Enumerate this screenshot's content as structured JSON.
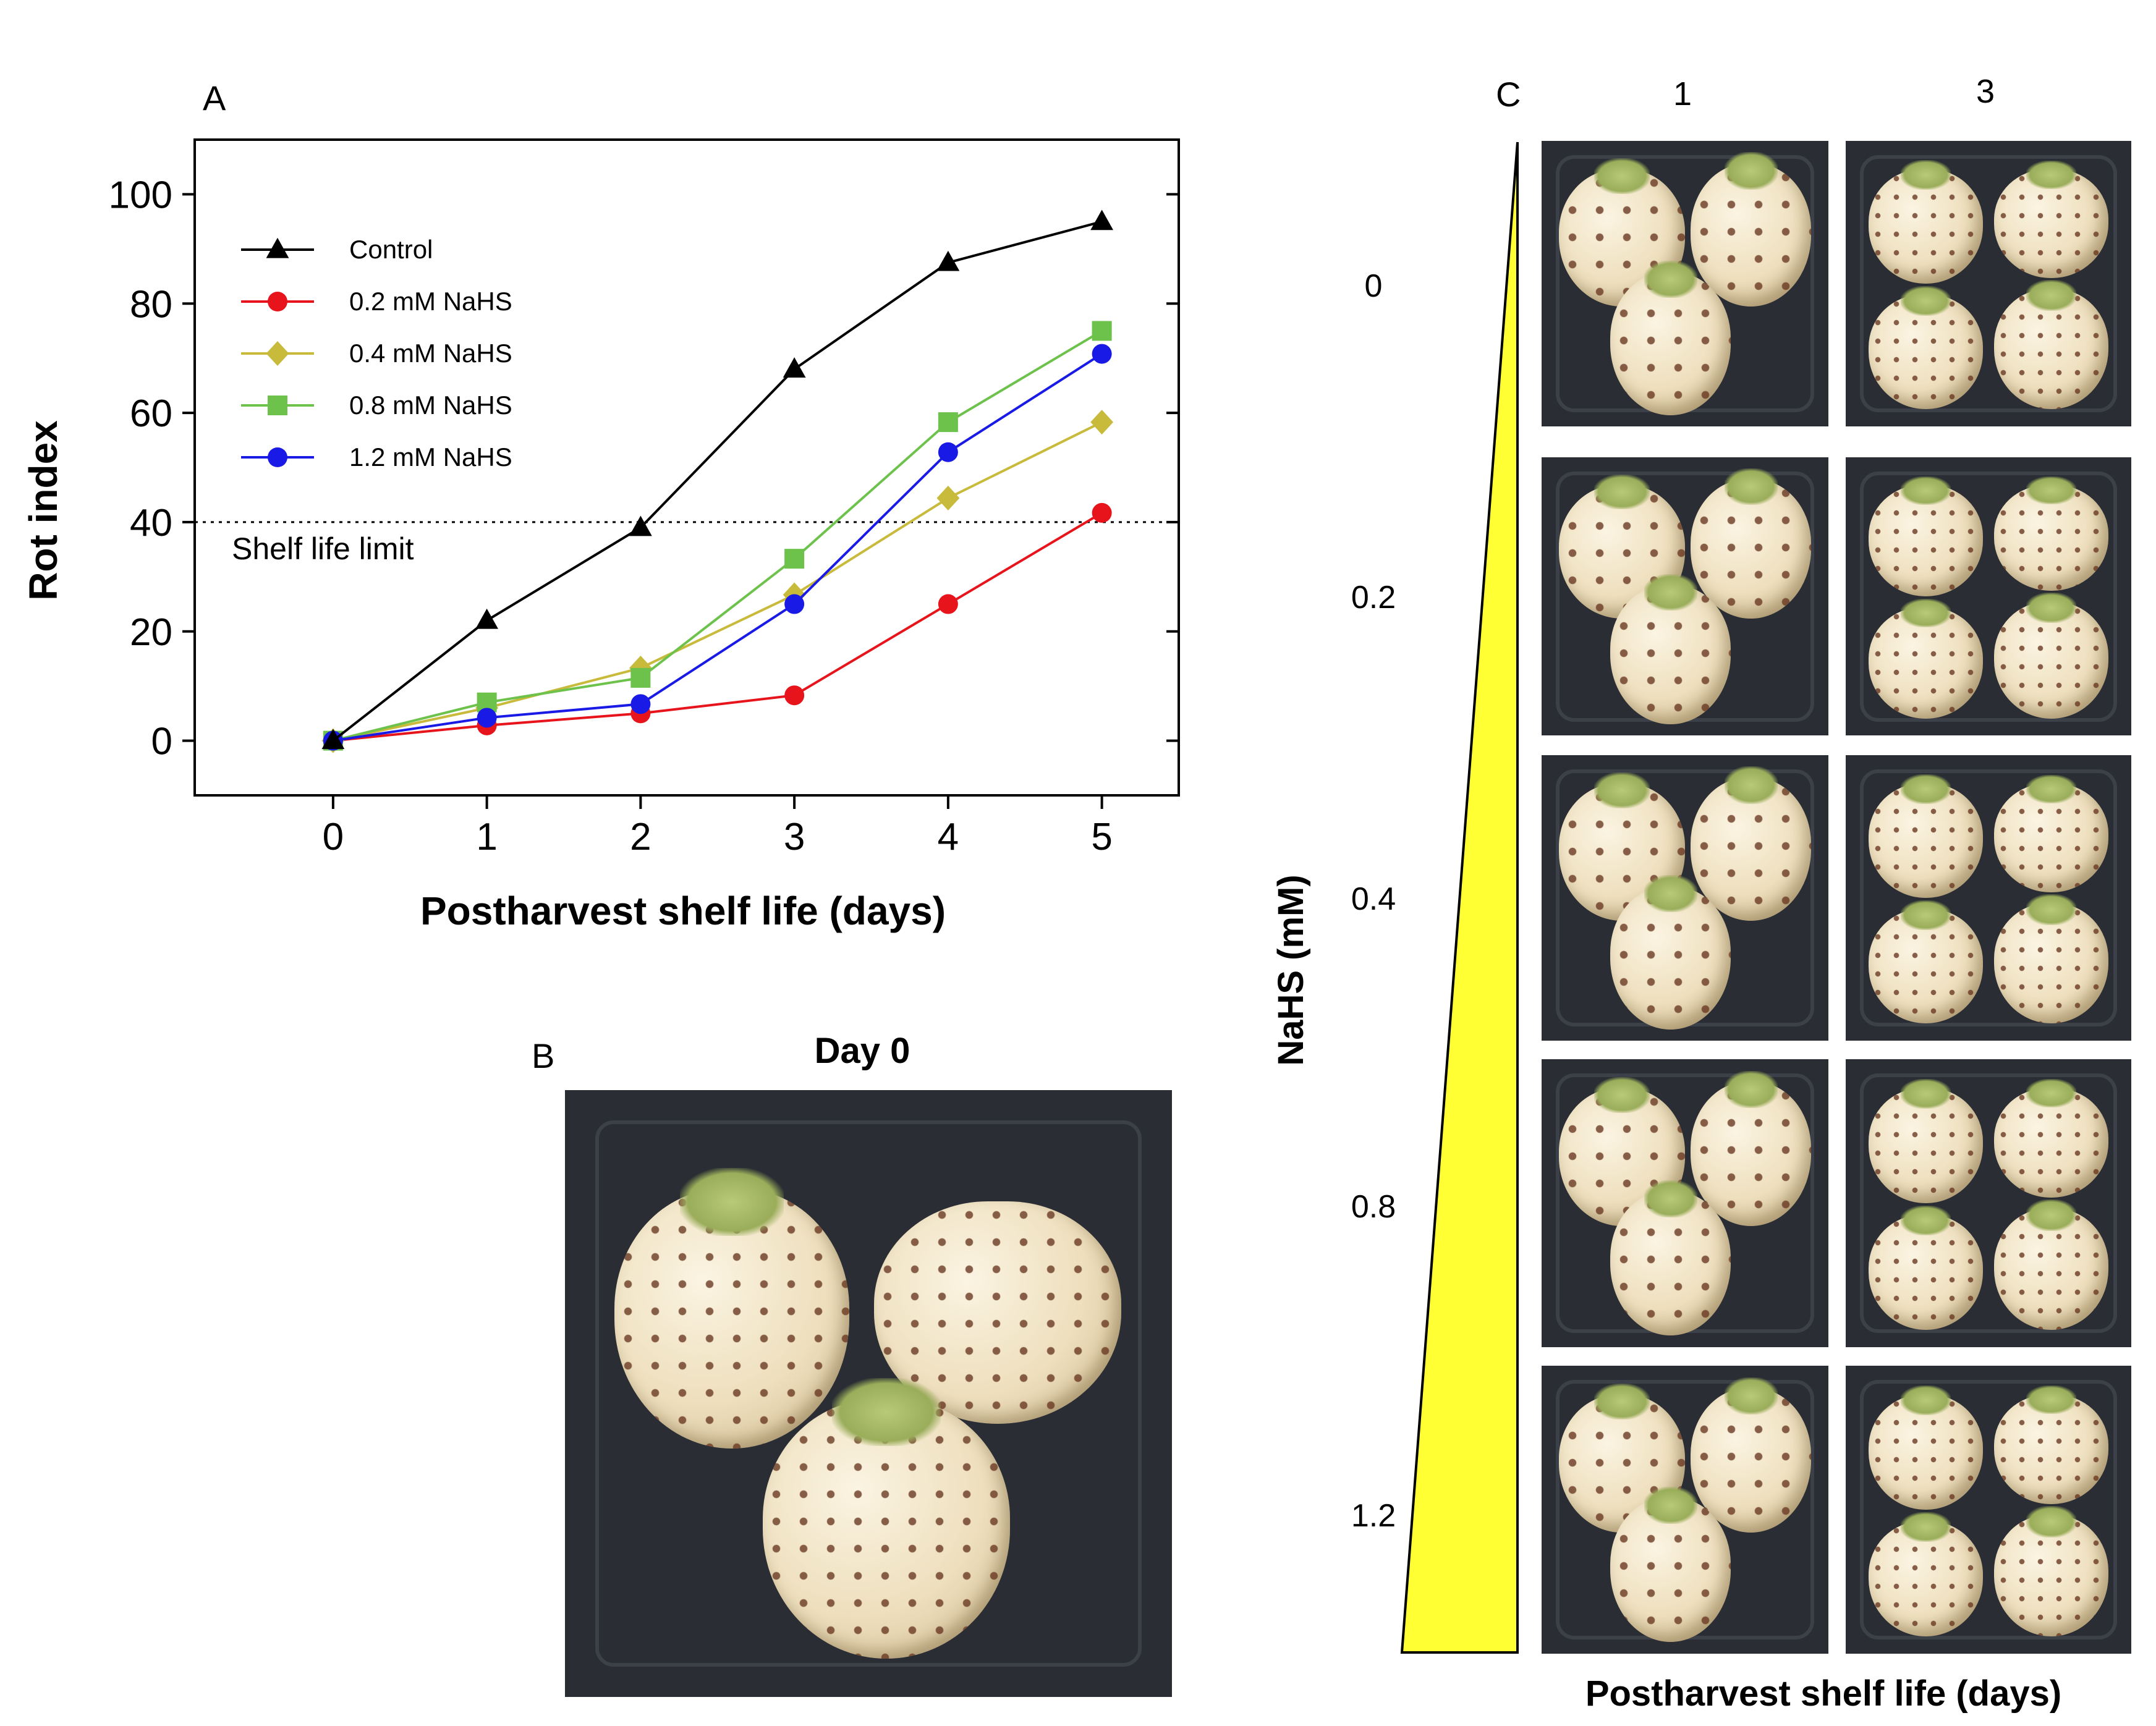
{
  "panels": {
    "a_label": "A",
    "b_label": "B",
    "c_label": "C",
    "b_title": "Day 0"
  },
  "chart_data": {
    "type": "line",
    "xlabel": "Postharvest shelf life (days)",
    "ylabel": "Rot index",
    "x": [
      0,
      1,
      2,
      3,
      4,
      5
    ],
    "xlim": [
      -0.9,
      5.5
    ],
    "ylim": [
      -10,
      110
    ],
    "xticks": [
      0,
      1,
      2,
      3,
      4,
      5
    ],
    "yticks": [
      0,
      20,
      40,
      60,
      80,
      100
    ],
    "grid": false,
    "legend_position": "top-left",
    "reference_line": {
      "y": 40,
      "label": "Shelf life limit",
      "style": "dotted"
    },
    "series": [
      {
        "name": "Control",
        "color": "#000000",
        "marker": "triangle",
        "values": [
          0,
          22,
          39,
          68,
          87.5,
          95
        ]
      },
      {
        "name": "0.2 mM NaHS",
        "color": "#e8141b",
        "marker": "circle",
        "values": [
          0,
          2.8,
          5,
          8.3,
          25,
          41.7
        ]
      },
      {
        "name": "0.4 mM NaHS",
        "color": "#c8ba3a",
        "marker": "diamond",
        "values": [
          0,
          6,
          13.3,
          26.7,
          44.4,
          58.3
        ]
      },
      {
        "name": "0.8 mM NaHS",
        "color": "#6cc24a",
        "marker": "square",
        "values": [
          0,
          7,
          11.5,
          33.3,
          58.3,
          75
        ]
      },
      {
        "name": "1.2 mM NaHS",
        "color": "#1a1ae6",
        "marker": "circle",
        "values": [
          0,
          4.2,
          6.7,
          25,
          52.8,
          70.8
        ]
      }
    ]
  },
  "panel_c": {
    "column_labels": [
      "1",
      "3"
    ],
    "row_labels": [
      "0",
      "0.2",
      "0.4",
      "0.8",
      "1.2"
    ],
    "y_axis_label": "NaHS (mM)",
    "x_axis_label": "Postharvest shelf life (days)",
    "gradient_color": "#ffff33"
  }
}
